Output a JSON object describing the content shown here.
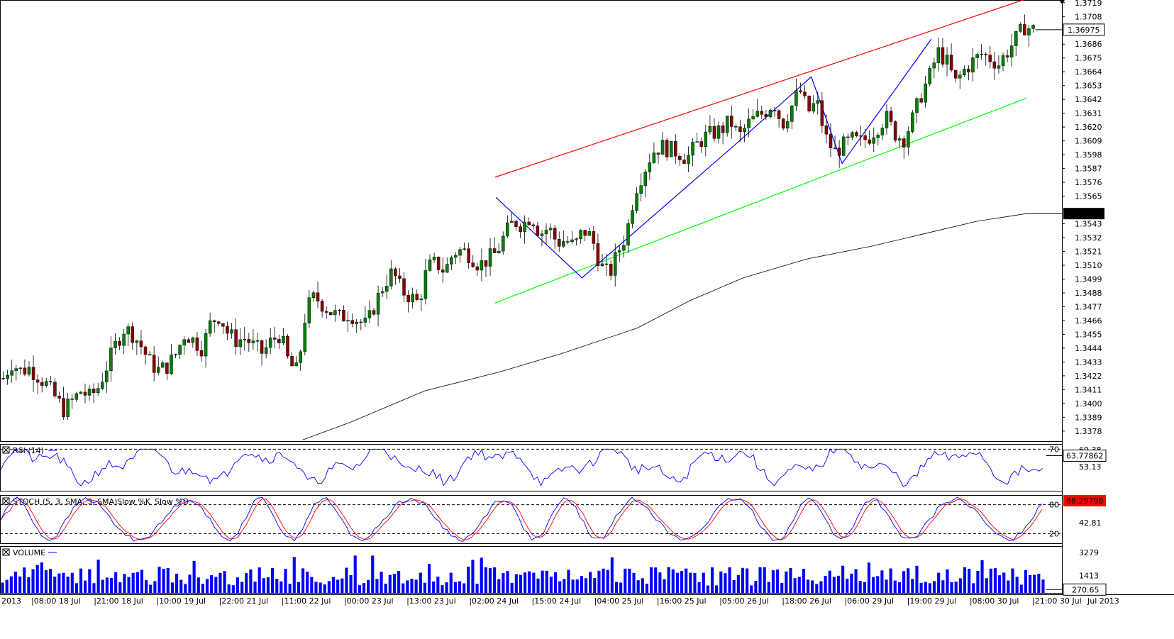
{
  "chart_data": [
    {
      "panel": "price",
      "type": "candlestick",
      "title": "",
      "y_ticks": [
        "1.3719",
        "1.3708",
        "1.3686",
        "1.3675",
        "1.3664",
        "1.3653",
        "1.3642",
        "1.3631",
        "1.3620",
        "1.3609",
        "1.3598",
        "1.3587",
        "1.3576",
        "1.3565",
        "1.3543",
        "1.3532",
        "1.3521",
        "1.3510",
        "1.3499",
        "1.3488",
        "1.3477",
        "1.3466",
        "1.3455",
        "1.3444",
        "1.3433",
        "1.3422",
        "1.3411",
        "1.3400",
        "1.3389",
        "1.3378"
      ],
      "ylim": [
        1.337,
        1.372
      ],
      "current_price_label": "1.36975",
      "current_price": 1.36975,
      "ma_label": "1.35511",
      "ma_value": 1.35511,
      "x_labels": [
        "2013",
        "|08:00 18 Jul",
        "|21:00 18 Jul",
        "|10:00 19 Jul",
        "|22:00 21 Jul",
        "|11:00 22 Jul",
        "|00:00 23 Jul",
        "|13:00 23 Jul",
        "|02:00 24 Jul",
        "|15:00 24 Jul",
        "|04:00 25 Jul",
        "|16:00 25 Jul",
        "|05:00 26 Jul",
        "|18:00 26 Jul",
        "|06:00 29 Jul",
        "|19:00 29 Jul",
        "|08:00 30 Jul",
        "|21:00 30 Jul",
        "Jul 2013"
      ],
      "close_path": [
        1.342,
        1.3432,
        1.3426,
        1.3428,
        1.3422,
        1.3415,
        1.3405,
        1.3395,
        1.3402,
        1.341,
        1.3405,
        1.3413,
        1.343,
        1.3447,
        1.346,
        1.3455,
        1.3445,
        1.3432,
        1.3426,
        1.343,
        1.344,
        1.3456,
        1.345,
        1.3444,
        1.3465,
        1.347,
        1.3455,
        1.345,
        1.3452,
        1.3445,
        1.344,
        1.345,
        1.3455,
        1.3432,
        1.3425,
        1.3475,
        1.3485,
        1.3478,
        1.3472,
        1.3468,
        1.3472,
        1.3466,
        1.3462,
        1.348,
        1.3495,
        1.3505,
        1.349,
        1.3485,
        1.348,
        1.3508,
        1.3512,
        1.3505,
        1.352,
        1.3522,
        1.3518,
        1.351,
        1.3515,
        1.352,
        1.3535,
        1.3545,
        1.3542,
        1.355,
        1.3535,
        1.354,
        1.3528,
        1.353,
        1.3525,
        1.3538,
        1.3532,
        1.351,
        1.3502,
        1.352,
        1.3535,
        1.357,
        1.3585,
        1.36,
        1.3605,
        1.3602,
        1.36,
        1.3595,
        1.3605,
        1.3612,
        1.3615,
        1.3618,
        1.3625,
        1.3612,
        1.3622,
        1.3628,
        1.3632,
        1.364,
        1.3622,
        1.3635,
        1.365,
        1.3632,
        1.364,
        1.3612,
        1.36,
        1.3605,
        1.361,
        1.3608,
        1.3612,
        1.362,
        1.3628,
        1.3615,
        1.361,
        1.3625,
        1.3645,
        1.366,
        1.368,
        1.3672,
        1.3655,
        1.3665,
        1.3672,
        1.3678,
        1.3675,
        1.367,
        1.368,
        1.369,
        1.37,
        1.36975
      ],
      "ma_path": [
        [
          0.285,
          1.3371
        ],
        [
          0.33,
          1.3385
        ],
        [
          0.4,
          1.341
        ],
        [
          0.47,
          1.3425
        ],
        [
          0.53,
          1.344
        ],
        [
          0.6,
          1.346
        ],
        [
          0.65,
          1.3482
        ],
        [
          0.7,
          1.35
        ],
        [
          0.76,
          1.3515
        ],
        [
          0.82,
          1.3525
        ],
        [
          0.87,
          1.3535
        ],
        [
          0.92,
          1.3545
        ],
        [
          0.9665,
          1.35511
        ]
      ],
      "trendlines": {
        "resistance_red": [
          [
            0.466,
            1.358
          ],
          [
            0.9665,
            1.3722
          ]
        ],
        "support_green": [
          [
            0.466,
            1.348
          ],
          [
            0.9665,
            1.3643
          ]
        ],
        "zigzag_blue": [
          [
            0.467,
            1.3564
          ],
          [
            0.548,
            1.35
          ],
          [
            0.695,
            1.3608
          ],
          [
            0.764,
            1.366
          ],
          [
            0.793,
            1.3591
          ],
          [
            0.877,
            1.369
          ]
        ]
      }
    },
    {
      "panel": "rsi",
      "type": "line",
      "title": "RSI (14)",
      "levels": [
        "70"
      ],
      "y_labels": [
        "69.38",
        "53.13"
      ],
      "current_label": "63.77862",
      "current_value": 63.77862,
      "ylim": [
        30,
        75
      ]
    },
    {
      "panel": "stoch",
      "type": "line",
      "title": "STOCH (5, 3, SMA, 3, SMA)",
      "series": [
        {
          "name": "Slow %K",
          "color": "#0000ff"
        },
        {
          "name": "Slow %D",
          "color": "#ff0000"
        }
      ],
      "levels": [
        "80",
        "20"
      ],
      "y_labels": [
        "42.81"
      ],
      "current_label": "88.29798",
      "current_value": 88.29798,
      "ylim": [
        0,
        100
      ]
    },
    {
      "panel": "volume",
      "type": "bar",
      "title": "VOLUME",
      "y_labels": [
        "3279",
        "1413"
      ],
      "current_label": "270.65",
      "current_value": 270.65,
      "ylim": [
        0,
        3800
      ]
    }
  ],
  "colors": {
    "up_candle": "#008000",
    "down_candle": "#8b0000",
    "resistance": "#ff0000",
    "support": "#00ff00",
    "zigzag": "#0000ff",
    "moving_average": "#000000",
    "rsi_line": "#0000ff",
    "stoch_k": "#0000ff",
    "stoch_d": "#ff0000",
    "volume_bar": "#0000ff"
  }
}
